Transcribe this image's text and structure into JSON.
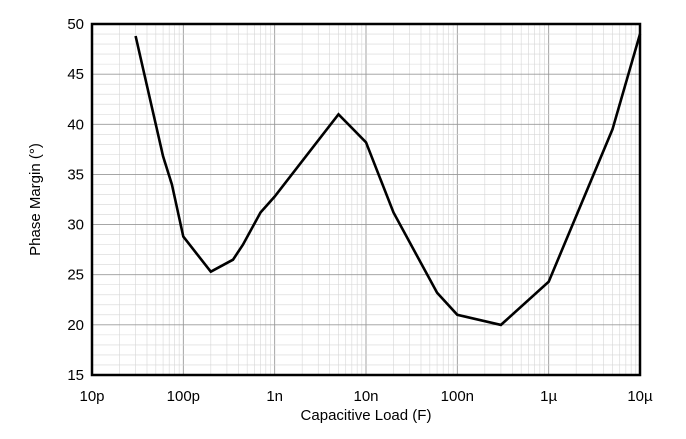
{
  "chart_data": {
    "type": "line",
    "xlabel": "Capacitive Load (F)",
    "ylabel": "Phase Margin (°)",
    "x_scale": "log",
    "xlim": [
      1e-11,
      1e-05
    ],
    "ylim": [
      15,
      50
    ],
    "grid": true,
    "x_ticks": [
      {
        "value": 1e-11,
        "label": "10p"
      },
      {
        "value": 1e-10,
        "label": "100p"
      },
      {
        "value": 1e-09,
        "label": "1n"
      },
      {
        "value": 1e-08,
        "label": "10n"
      },
      {
        "value": 1e-07,
        "label": "100n"
      },
      {
        "value": 1e-06,
        "label": "1µ"
      },
      {
        "value": 1e-05,
        "label": "10µ"
      }
    ],
    "y_ticks": [
      {
        "value": 15,
        "label": "15"
      },
      {
        "value": 20,
        "label": "20"
      },
      {
        "value": 25,
        "label": "25"
      },
      {
        "value": 30,
        "label": "30"
      },
      {
        "value": 35,
        "label": "35"
      },
      {
        "value": 40,
        "label": "40"
      },
      {
        "value": 45,
        "label": "45"
      },
      {
        "value": 50,
        "label": "50"
      }
    ],
    "series": [
      {
        "color": "#000000",
        "x": [
          3e-11,
          6e-11,
          7.5e-11,
          1e-10,
          2e-10,
          3.5e-10,
          4.5e-10,
          7e-10,
          1e-09,
          5e-09,
          1e-08,
          2e-08,
          6e-08,
          1e-07,
          3e-07,
          1e-06,
          5e-06,
          1e-05
        ],
        "y": [
          48.8,
          36.8,
          34.0,
          28.8,
          25.3,
          26.5,
          28.0,
          31.2,
          32.8,
          41.0,
          38.2,
          31.2,
          23.2,
          21.0,
          20.0,
          24.3,
          39.5,
          49.0
        ]
      }
    ]
  }
}
